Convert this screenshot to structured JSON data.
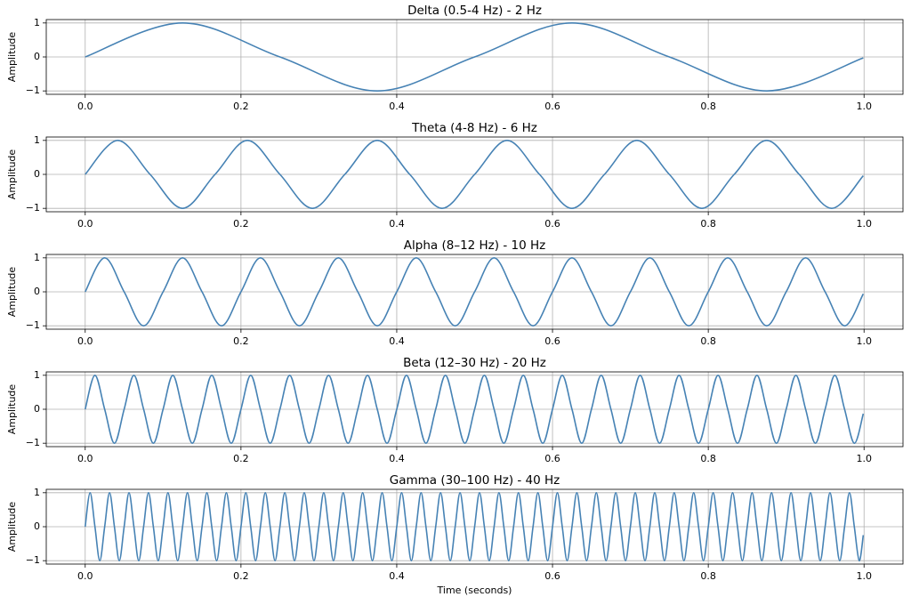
{
  "chart_data": [
    {
      "type": "line",
      "title": "Delta (0.5-4 Hz) - 2 Hz",
      "ylabel": "Amplitude",
      "color": "#4682b4",
      "grid": true,
      "xlim": [
        -0.05,
        1.05
      ],
      "ylim": [
        -1.1,
        1.1
      ],
      "xticks": [
        {
          "value": 0,
          "label": "0.0"
        },
        0.2,
        0.4,
        0.6,
        0.8,
        {
          "value": 1,
          "label": "1.0"
        }
      ],
      "yticks": [
        {
          "value": -1,
          "label": "−1"
        },
        0,
        1
      ],
      "x": [
        0,
        0.125,
        0.25,
        0.375,
        0.5,
        0.625,
        0.75,
        0.875,
        0.999
      ],
      "values": [
        0,
        1,
        0,
        -1,
        0,
        1,
        0,
        -1,
        -0.03
      ]
    },
    {
      "type": "line",
      "title": "Theta (4-8 Hz) - 6 Hz",
      "ylabel": "Amplitude",
      "color": "#4682b4",
      "grid": true,
      "xlim": [
        -0.05,
        1.05
      ],
      "ylim": [
        -1.1,
        1.1
      ],
      "xticks": [
        {
          "value": 0,
          "label": "0.0"
        },
        0.2,
        0.4,
        0.6,
        0.8,
        {
          "value": 1,
          "label": "1.0"
        }
      ],
      "yticks": [
        {
          "value": -1,
          "label": "−1"
        },
        0,
        1
      ],
      "x": [
        0,
        0.0417,
        0.0833,
        0.125,
        0.1667,
        0.2083,
        0.25,
        0.2917,
        0.3333,
        0.375,
        0.4167,
        0.4583,
        0.5,
        0.5417,
        0.5833,
        0.625,
        0.6667,
        0.7083,
        0.75,
        0.7917,
        0.8333,
        0.875,
        0.9167,
        0.9583,
        0.999
      ],
      "values": [
        0,
        1,
        0,
        -1,
        0,
        1,
        0,
        -1,
        0,
        1,
        0,
        -1,
        0,
        1,
        0,
        -1,
        0,
        1,
        0,
        -1,
        0,
        1,
        0,
        -1,
        -0.04
      ]
    },
    {
      "type": "line",
      "title": "Alpha (8–12 Hz) - 10 Hz",
      "ylabel": "Amplitude",
      "color": "#4682b4",
      "grid": true,
      "xlim": [
        -0.05,
        1.05
      ],
      "ylim": [
        -1.1,
        1.1
      ],
      "xticks": [
        {
          "value": 0,
          "label": "0.0"
        },
        0.2,
        0.4,
        0.6,
        0.8,
        {
          "value": 1,
          "label": "1.0"
        }
      ],
      "yticks": [
        {
          "value": -1,
          "label": "−1"
        },
        0,
        1
      ],
      "x": [
        0,
        0.025,
        0.05,
        0.075,
        0.1,
        0.125,
        0.15,
        0.175,
        0.2,
        0.225,
        0.25,
        0.275,
        0.3,
        0.325,
        0.35,
        0.375,
        0.4,
        0.425,
        0.45,
        0.475,
        0.5,
        0.525,
        0.55,
        0.575,
        0.6,
        0.625,
        0.65,
        0.675,
        0.7,
        0.725,
        0.75,
        0.775,
        0.8,
        0.825,
        0.85,
        0.875,
        0.9,
        0.925,
        0.95,
        0.975,
        0.999
      ],
      "values": [
        0,
        1,
        0,
        -1,
        0,
        1,
        0,
        -1,
        0,
        1,
        0,
        -1,
        0,
        1,
        0,
        -1,
        0,
        1,
        0,
        -1,
        0,
        1,
        0,
        -1,
        0,
        1,
        0,
        -1,
        0,
        1,
        0,
        -1,
        0,
        1,
        0,
        -1,
        0,
        1,
        0,
        -1,
        -0.06
      ]
    },
    {
      "type": "line",
      "title": "Beta (12–30 Hz) - 20 Hz",
      "ylabel": "Amplitude",
      "color": "#4682b4",
      "grid": true,
      "xlim": [
        -0.05,
        1.05
      ],
      "ylim": [
        -1.1,
        1.1
      ],
      "xticks": [
        {
          "value": 0,
          "label": "0.0"
        },
        0.2,
        0.4,
        0.6,
        0.8,
        {
          "value": 1,
          "label": "1.0"
        }
      ],
      "yticks": [
        {
          "value": -1,
          "label": "−1"
        },
        0,
        1
      ],
      "x": [
        0,
        0.0125,
        0.025,
        0.0375,
        0.05,
        0.0625,
        0.075,
        0.0875,
        0.1,
        0.1125,
        0.125,
        0.1375,
        0.15,
        0.1625,
        0.175,
        0.1875,
        0.2,
        0.2125,
        0.225,
        0.2375,
        0.25,
        0.2625,
        0.275,
        0.2875,
        0.3,
        0.3125,
        0.325,
        0.3375,
        0.35,
        0.3625,
        0.375,
        0.3875,
        0.4,
        0.4125,
        0.425,
        0.4375,
        0.45,
        0.4625,
        0.475,
        0.4875,
        0.5,
        0.5125,
        0.525,
        0.5375,
        0.55,
        0.5625,
        0.575,
        0.5875,
        0.6,
        0.6125,
        0.625,
        0.6375,
        0.65,
        0.6625,
        0.675,
        0.6875,
        0.7,
        0.7125,
        0.725,
        0.7375,
        0.75,
        0.7625,
        0.775,
        0.7875,
        0.8,
        0.8125,
        0.825,
        0.8375,
        0.85,
        0.8625,
        0.875,
        0.8875,
        0.9,
        0.9125,
        0.925,
        0.9375,
        0.95,
        0.9625,
        0.975,
        0.9875,
        0.999
      ],
      "values": [
        0,
        1,
        0,
        -1,
        0,
        1,
        0,
        -1,
        0,
        1,
        0,
        -1,
        0,
        1,
        0,
        -1,
        0,
        1,
        0,
        -1,
        0,
        1,
        0,
        -1,
        0,
        1,
        0,
        -1,
        0,
        1,
        0,
        -1,
        0,
        1,
        0,
        -1,
        0,
        1,
        0,
        -1,
        0,
        1,
        0,
        -1,
        0,
        1,
        0,
        -1,
        0,
        1,
        0,
        -1,
        0,
        1,
        0,
        -1,
        0,
        1,
        0,
        -1,
        0,
        1,
        0,
        -1,
        0,
        1,
        0,
        -1,
        0,
        1,
        0,
        -1,
        0,
        1,
        0,
        -1,
        0,
        1,
        0,
        -1,
        -0.13
      ]
    },
    {
      "type": "line",
      "title": "Gamma (30–100 Hz) - 40 Hz",
      "ylabel": "Amplitude",
      "xlabel": "Time (seconds)",
      "color": "#4682b4",
      "grid": true,
      "xlim": [
        -0.05,
        1.05
      ],
      "ylim": [
        -1.1,
        1.1
      ],
      "xticks": [
        {
          "value": 0,
          "label": "0.0"
        },
        0.2,
        0.4,
        0.6,
        0.8,
        {
          "value": 1,
          "label": "1.0"
        }
      ],
      "yticks": [
        {
          "value": -1,
          "label": "−1"
        },
        0,
        1
      ],
      "x": [
        0,
        0.00625,
        0.0125,
        0.01875,
        0.025,
        0.03125,
        0.0375,
        0.04375,
        0.05,
        0.05625,
        0.0625,
        0.06875,
        0.075,
        0.08125,
        0.0875,
        0.09375,
        0.1,
        0.10625,
        0.1125,
        0.11875,
        0.125,
        0.13125,
        0.1375,
        0.14375,
        0.15,
        0.15625,
        0.1625,
        0.16875,
        0.175,
        0.18125,
        0.1875,
        0.19375,
        0.2,
        0.20625,
        0.2125,
        0.21875,
        0.225,
        0.23125,
        0.2375,
        0.24375,
        0.25,
        0.25625,
        0.2625,
        0.26875,
        0.275,
        0.28125,
        0.2875,
        0.29375,
        0.3,
        0.30625,
        0.3125,
        0.31875,
        0.325,
        0.33125,
        0.3375,
        0.34375,
        0.35,
        0.35625,
        0.3625,
        0.36875,
        0.375,
        0.38125,
        0.3875,
        0.39375,
        0.4,
        0.40625,
        0.4125,
        0.41875,
        0.425,
        0.43125,
        0.4375,
        0.44375,
        0.45,
        0.45625,
        0.4625,
        0.46875,
        0.475,
        0.48125,
        0.4875,
        0.49375,
        0.5,
        0.50625,
        0.5125,
        0.51875,
        0.525,
        0.53125,
        0.5375,
        0.54375,
        0.55,
        0.55625,
        0.5625,
        0.56875,
        0.575,
        0.58125,
        0.5875,
        0.59375,
        0.6,
        0.60625,
        0.6125,
        0.61875,
        0.625,
        0.63125,
        0.6375,
        0.64375,
        0.65,
        0.65625,
        0.6625,
        0.66875,
        0.675,
        0.68125,
        0.6875,
        0.69375,
        0.7,
        0.70625,
        0.7125,
        0.71875,
        0.725,
        0.73125,
        0.7375,
        0.74375,
        0.75,
        0.75625,
        0.7625,
        0.76875,
        0.775,
        0.78125,
        0.7875,
        0.79375,
        0.8,
        0.80625,
        0.8125,
        0.81875,
        0.825,
        0.83125,
        0.8375,
        0.84375,
        0.85,
        0.85625,
        0.8625,
        0.86875,
        0.875,
        0.88125,
        0.8875,
        0.89375,
        0.9,
        0.90625,
        0.9125,
        0.91875,
        0.925,
        0.93125,
        0.9375,
        0.94375,
        0.95,
        0.95625,
        0.9625,
        0.96875,
        0.975,
        0.98125,
        0.9875,
        0.99375,
        0.999
      ],
      "values": [
        0,
        1,
        0,
        -1,
        0,
        1,
        0,
        -1,
        0,
        1,
        0,
        -1,
        0,
        1,
        0,
        -1,
        0,
        1,
        0,
        -1,
        0,
        1,
        0,
        -1,
        0,
        1,
        0,
        -1,
        0,
        1,
        0,
        -1,
        0,
        1,
        0,
        -1,
        0,
        1,
        0,
        -1,
        0,
        1,
        0,
        -1,
        0,
        1,
        0,
        -1,
        0,
        1,
        0,
        -1,
        0,
        1,
        0,
        -1,
        0,
        1,
        0,
        -1,
        0,
        1,
        0,
        -1,
        0,
        1,
        0,
        -1,
        0,
        1,
        0,
        -1,
        0,
        1,
        0,
        -1,
        0,
        1,
        0,
        -1,
        0,
        1,
        0,
        -1,
        0,
        1,
        0,
        -1,
        0,
        1,
        0,
        -1,
        0,
        1,
        0,
        -1,
        0,
        1,
        0,
        -1,
        0,
        1,
        0,
        -1,
        0,
        1,
        0,
        -1,
        0,
        1,
        0,
        -1,
        0,
        1,
        0,
        -1,
        0,
        1,
        0,
        -1,
        0,
        1,
        0,
        -1,
        0,
        1,
        0,
        -1,
        0,
        1,
        0,
        -1,
        0,
        1,
        0,
        -1,
        0,
        1,
        0,
        -1,
        0,
        1,
        0,
        -1,
        0,
        1,
        0,
        -1,
        0,
        1,
        0,
        -1,
        0,
        1,
        0,
        -1,
        0,
        1,
        0,
        -1,
        -0.25
      ]
    }
  ]
}
